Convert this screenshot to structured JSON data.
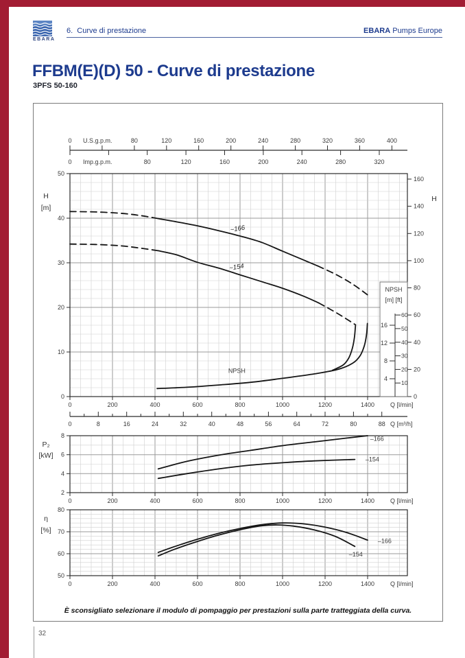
{
  "page": {
    "header": {
      "section": "6.  Curve di prestazione",
      "brand_bold": "EBARA",
      "brand_rest": " Pumps Europe",
      "logo_text": "EBARA"
    },
    "title": "FFBM(E)(D) 50 - Curve di prestazione",
    "subtitle": "3PFS 50-160",
    "note": "È sconsigliato selezionare il modulo di pompaggio per prestazioni sulla parte tratteggiata della curva.",
    "page_number": "32",
    "colors": {
      "accent_red": "#A21C33",
      "navy": "#1D3B8E",
      "curve": "#151515"
    }
  },
  "chart_data": [
    {
      "id": "hq",
      "type": "line",
      "name": "Prevalenza H - Portata Q",
      "xlabel": "Q [l/min]",
      "ylabel": [
        "H",
        "[m]"
      ],
      "xlim": [
        0,
        1587
      ],
      "ylim": [
        0,
        50
      ],
      "x_ticks": [
        0,
        200,
        400,
        600,
        800,
        1000,
        1200,
        1400
      ],
      "y_ticks": [
        0,
        10,
        20,
        30,
        40,
        50
      ],
      "grid": {
        "x_minor": 50,
        "x_major": 200,
        "y_minor": 2,
        "y_major": 10
      },
      "top_axes": [
        {
          "unit_label": "U.S.g.p.m.",
          "lpm_per_unit": 3.785,
          "tick_step": 40,
          "tick_max": 400,
          "labeled": [
            0,
            80,
            120,
            160,
            200,
            240,
            280,
            320,
            360,
            400
          ]
        },
        {
          "unit_label": "Imp.g.p.m.",
          "lpm_per_unit": 4.546,
          "tick_step": 40,
          "tick_max": 320,
          "labeled": [
            0,
            80,
            120,
            160,
            200,
            240,
            280,
            320
          ]
        }
      ],
      "right_axis_ft": {
        "label": "H",
        "ft_per_m": 3.2808,
        "ticks": [
          0,
          20,
          40,
          60,
          80,
          100,
          120,
          140,
          160
        ]
      },
      "npsh_inset": {
        "title": "NPSH",
        "units": "[m] [ft]",
        "m_ticks": [
          4,
          8,
          12,
          16
        ],
        "ft_ticks": [
          10,
          20,
          30,
          40,
          50,
          60
        ]
      },
      "series": [
        {
          "name": "~166",
          "label": {
            "text": "~166",
            "q": 790,
            "h": 37.2,
            "rotate": -9,
            "italic": true
          },
          "segments": [
            {
              "dash": true,
              "pts": [
                [
                  0,
                  41.5
                ],
                [
                  120,
                  41.4
                ],
                [
                  240,
                  41.1
                ],
                [
                  330,
                  40.6
                ],
                [
                  415,
                  39.9
                ]
              ]
            },
            {
              "dash": false,
              "pts": [
                [
                  415,
                  39.9
                ],
                [
                  500,
                  39.2
                ],
                [
                  600,
                  38.3
                ],
                [
                  700,
                  37.2
                ],
                [
                  800,
                  36.0
                ],
                [
                  900,
                  34.6
                ],
                [
                  1000,
                  32.6
                ],
                [
                  1100,
                  30.6
                ],
                [
                  1165,
                  29.3
                ]
              ]
            },
            {
              "dash": true,
              "pts": [
                [
                  1165,
                  29.3
                ],
                [
                  1250,
                  27.4
                ],
                [
                  1330,
                  25.2
                ],
                [
                  1400,
                  22.8
                ]
              ]
            }
          ]
        },
        {
          "name": "~154",
          "label": {
            "text": "~154",
            "q": 785,
            "h": 28.6,
            "rotate": -9,
            "italic": true
          },
          "segments": [
            {
              "dash": true,
              "pts": [
                [
                  0,
                  34.2
                ],
                [
                  120,
                  34.1
                ],
                [
                  240,
                  33.8
                ],
                [
                  330,
                  33.3
                ],
                [
                  415,
                  32.7
                ]
              ]
            },
            {
              "dash": false,
              "pts": [
                [
                  415,
                  32.7
                ],
                [
                  500,
                  31.8
                ],
                [
                  600,
                  30.1
                ],
                [
                  700,
                  28.8
                ],
                [
                  800,
                  27.3
                ],
                [
                  900,
                  25.8
                ],
                [
                  1000,
                  24.3
                ],
                [
                  1100,
                  22.5
                ],
                [
                  1170,
                  21.0
                ]
              ]
            },
            {
              "dash": true,
              "pts": [
                [
                  1170,
                  21.0
                ],
                [
                  1260,
                  18.6
                ],
                [
                  1340,
                  16.2
                ]
              ]
            }
          ]
        },
        {
          "name": "NPSH ~166",
          "label": {
            "text": "NPSH",
            "q": 785,
            "h": 5.3
          },
          "segments": [
            {
              "dash": false,
              "pts": [
                [
                  410,
                  1.8
                ],
                [
                  550,
                  2.1
                ],
                [
                  700,
                  2.6
                ],
                [
                  850,
                  3.2
                ],
                [
                  1000,
                  4.1
                ],
                [
                  1150,
                  5.1
                ],
                [
                  1260,
                  6.1
                ],
                [
                  1330,
                  7.5
                ],
                [
                  1365,
                  9.2
                ],
                [
                  1385,
                  11.5
                ],
                [
                  1395,
                  14.0
                ],
                [
                  1399,
                  16.4
                ]
              ]
            }
          ]
        },
        {
          "name": "NPSH ~154",
          "segments": [
            {
              "dash": false,
              "pts": [
                [
                  1235,
                  5.9
                ],
                [
                  1285,
                  7.1
                ],
                [
                  1312,
                  8.7
                ],
                [
                  1328,
                  10.8
                ],
                [
                  1338,
                  13.3
                ],
                [
                  1343,
                  16.1
                ]
              ]
            }
          ]
        }
      ]
    },
    {
      "id": "p2",
      "type": "line",
      "name": "Potenza assorbita P2 - Portata Q",
      "xlabel": "Q [l/min]",
      "ylabel": [
        "P₂",
        "[kW]"
      ],
      "xlim": [
        0,
        1587
      ],
      "ylim": [
        2,
        8
      ],
      "x_ticks": [
        0,
        200,
        400,
        600,
        800,
        1000,
        1200,
        1400
      ],
      "y_ticks": [
        2,
        4,
        6,
        8
      ],
      "grid": {
        "x_minor": 50,
        "x_major": 200,
        "y_minor": 1,
        "y_major": 2
      },
      "top_axes": [
        {
          "unit_label": "Q [m³/h]",
          "lpm_per_unit": 16.6667,
          "tick_step": 8,
          "minor_step": 4,
          "tick_max": 88,
          "labeled": [
            0,
            8,
            16,
            24,
            32,
            40,
            48,
            56,
            64,
            72,
            80,
            88
          ]
        }
      ],
      "series": [
        {
          "name": "-166",
          "label": {
            "text": "–166",
            "q": 1412,
            "h": 7.45,
            "anchor": "start"
          },
          "segments": [
            {
              "dash": false,
              "pts": [
                [
                  415,
                  4.5
                ],
                [
                  550,
                  5.3
                ],
                [
                  700,
                  5.95
                ],
                [
                  850,
                  6.45
                ],
                [
                  1000,
                  6.95
                ],
                [
                  1150,
                  7.35
                ],
                [
                  1300,
                  7.75
                ],
                [
                  1400,
                  8.0
                ]
              ]
            }
          ]
        },
        {
          "name": "-154",
          "label": {
            "text": "–154",
            "q": 1390,
            "h": 5.3,
            "anchor": "start"
          },
          "segments": [
            {
              "dash": false,
              "pts": [
                [
                  415,
                  3.5
                ],
                [
                  550,
                  4.0
                ],
                [
                  700,
                  4.5
                ],
                [
                  850,
                  4.9
                ],
                [
                  1000,
                  5.15
                ],
                [
                  1150,
                  5.35
                ],
                [
                  1340,
                  5.5
                ]
              ]
            }
          ]
        }
      ]
    },
    {
      "id": "eta",
      "type": "line",
      "name": "Rendimento η - Portata Q",
      "xlabel": "Q [l/min]",
      "ylabel": [
        "η",
        "[%]"
      ],
      "xlim": [
        0,
        1587
      ],
      "ylim": [
        50,
        80
      ],
      "x_ticks": [
        0,
        200,
        400,
        600,
        800,
        1000,
        1200,
        1400
      ],
      "y_ticks": [
        50,
        60,
        70,
        80
      ],
      "grid": {
        "x_minor": 50,
        "x_major": 200,
        "y_minor": 2,
        "y_major": 10
      },
      "series": [
        {
          "name": "-166",
          "label": {
            "text": "–166",
            "q": 1448,
            "h": 64.8,
            "anchor": "start"
          },
          "segments": [
            {
              "dash": false,
              "pts": [
                [
                  415,
                  60.6
                ],
                [
                  500,
                  63.5
                ],
                [
                  600,
                  66.6
                ],
                [
                  700,
                  69.3
                ],
                [
                  800,
                  71.5
                ],
                [
                  900,
                  73.2
                ],
                [
                  1000,
                  74.0
                ],
                [
                  1100,
                  73.6
                ],
                [
                  1200,
                  72.1
                ],
                [
                  1300,
                  69.7
                ],
                [
                  1400,
                  66.2
                ]
              ]
            }
          ]
        },
        {
          "name": "-154",
          "label": {
            "text": "–154",
            "q": 1312,
            "h": 58.8,
            "anchor": "start"
          },
          "segments": [
            {
              "dash": false,
              "pts": [
                [
                  415,
                  59.0
                ],
                [
                  500,
                  62.3
                ],
                [
                  600,
                  65.6
                ],
                [
                  700,
                  68.5
                ],
                [
                  800,
                  70.9
                ],
                [
                  900,
                  72.7
                ],
                [
                  975,
                  73.1
                ],
                [
                  1050,
                  72.6
                ],
                [
                  1150,
                  70.8
                ],
                [
                  1250,
                  67.8
                ],
                [
                  1340,
                  63.3
                ]
              ]
            }
          ]
        }
      ]
    }
  ]
}
